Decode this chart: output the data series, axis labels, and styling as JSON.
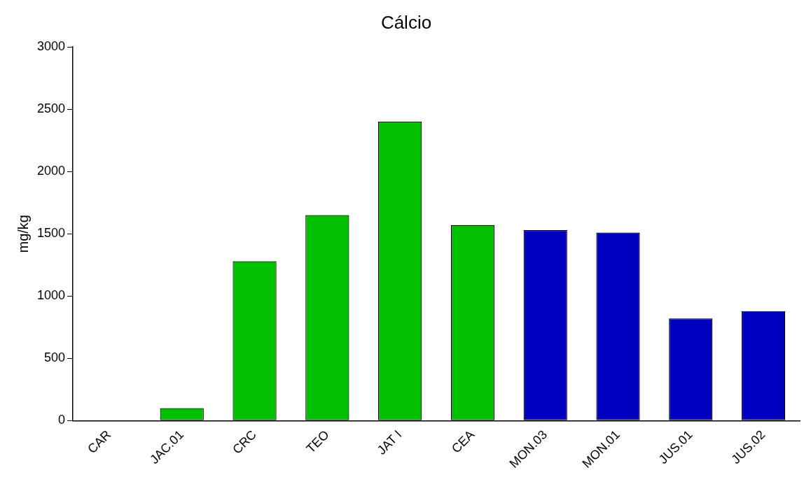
{
  "chart_data": {
    "type": "bar",
    "title": "Cálcio",
    "ylabel": "mg/kg",
    "categories": [
      "CAR",
      "JAC.01",
      "CRC",
      "TEO",
      "JAT I",
      "CEA",
      "MON.03",
      "MON.01",
      "JUS.01",
      "JUS.02"
    ],
    "values": [
      0,
      100,
      1280,
      1650,
      2400,
      1570,
      1530,
      1510,
      820,
      880
    ],
    "colors": [
      "#00c000",
      "#00c000",
      "#00c000",
      "#00c000",
      "#00c000",
      "#00c000",
      "#0000c0",
      "#0000c0",
      "#0000c0",
      "#0000c0"
    ],
    "ylim": [
      0,
      3000
    ],
    "yticks": [
      0,
      500,
      1000,
      1500,
      2000,
      2500,
      3000
    ],
    "grid": false,
    "legend": false
  }
}
